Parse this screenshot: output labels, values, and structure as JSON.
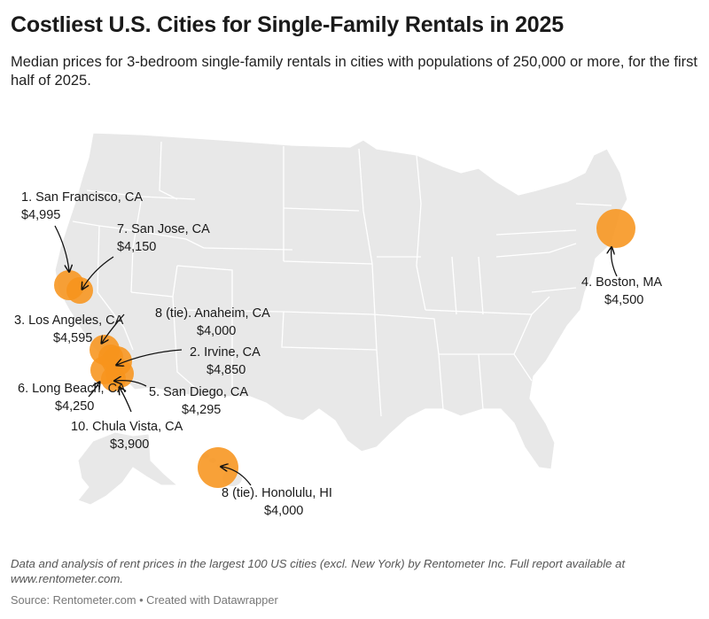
{
  "header": {
    "title": "Costliest U.S. Cities for Single-Family Rentals in 2025",
    "subtitle": "Median prices for 3-bedroom single-family rentals in cities with populations of 250,000 or more, for the first half of 2025."
  },
  "colors": {
    "land": "#e8e8e8",
    "borders": "#ffffff",
    "bubble": "#f7941d",
    "arrow": "#111111"
  },
  "cities": [
    {
      "name": "1. San Francisco, CA",
      "price": "$4,995"
    },
    {
      "name": "2. Irvine, CA",
      "price": "$4,850"
    },
    {
      "name": "3. Los Angeles, CA",
      "price": "$4,595"
    },
    {
      "name": "4. Boston, MA",
      "price": "$4,500"
    },
    {
      "name": "5. San Diego, CA",
      "price": "$4,295"
    },
    {
      "name": "6. Long Beach, CA",
      "price": "$4,250"
    },
    {
      "name": "7. San Jose, CA",
      "price": "$4,150"
    },
    {
      "name": "8 (tie). Anaheim, CA",
      "price": "$4,000"
    },
    {
      "name": "8 (tie). Honolulu, HI",
      "price": "$4,000"
    },
    {
      "name": "10. Chula Vista, CA",
      "price": "$3,900"
    }
  ],
  "footer": {
    "note": "Data and analysis of rent prices in the largest 100 US cities (excl. New York) by Rentometer Inc. Full report available at www.rentometer.com.",
    "source": "Source: Rentometer.com • Created with Datawrapper"
  }
}
